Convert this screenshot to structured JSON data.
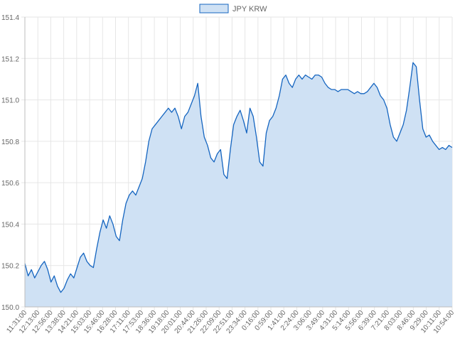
{
  "chart_data": {
    "type": "area",
    "title": "",
    "legend": {
      "position": "top",
      "entries": [
        "JPY KRW"
      ]
    },
    "xlabel": "",
    "ylabel": "",
    "ylim": [
      150.0,
      151.4
    ],
    "y_ticks": [
      "150.0",
      "150.2",
      "150.4",
      "150.6",
      "150.8",
      "151.0",
      "151.2",
      "151.4"
    ],
    "grid": true,
    "colors": {
      "line": "#1565c0",
      "fill": "#cfe1f4",
      "grid": "#e6e6e6",
      "text": "#666666"
    },
    "x_ticks": [
      "11:31:00",
      "12:13:00",
      "12:56:00",
      "13:38:00",
      "14:21:00",
      "15:03:00",
      "15:46:00",
      "16:28:00",
      "17:11:00",
      "17:53:00",
      "18:36:00",
      "19:18:00",
      "20:01:00",
      "20:44:00",
      "21:26:00",
      "22:09:00",
      "22:51:00",
      "23:34:00",
      "0:16:00",
      "0:59:00",
      "1:41:00",
      "2:24:00",
      "3:06:00",
      "3:49:00",
      "4:31:00",
      "5:14:00",
      "5:56:00",
      "6:39:00",
      "7:21:00",
      "8:03:00",
      "8:46:00",
      "9:29:00",
      "10:11:00",
      "10:54:00"
    ],
    "series": [
      {
        "name": "JPY KRW",
        "values": [
          150.21,
          150.15,
          150.18,
          150.14,
          150.17,
          150.2,
          150.22,
          150.18,
          150.12,
          150.15,
          150.1,
          150.07,
          150.09,
          150.13,
          150.16,
          150.14,
          150.19,
          150.24,
          150.26,
          150.22,
          150.2,
          150.19,
          150.28,
          150.36,
          150.42,
          150.38,
          150.44,
          150.4,
          150.34,
          150.32,
          150.42,
          150.5,
          150.54,
          150.56,
          150.54,
          150.58,
          150.62,
          150.7,
          150.8,
          150.86,
          150.88,
          150.9,
          150.92,
          150.94,
          150.96,
          150.94,
          150.96,
          150.92,
          150.86,
          150.92,
          150.94,
          150.98,
          151.02,
          151.08,
          150.92,
          150.82,
          150.78,
          150.72,
          150.7,
          150.74,
          150.76,
          150.64,
          150.62,
          150.76,
          150.88,
          150.92,
          150.95,
          150.9,
          150.84,
          150.96,
          150.92,
          150.82,
          150.7,
          150.68,
          150.84,
          150.9,
          150.92,
          150.96,
          151.02,
          151.1,
          151.12,
          151.08,
          151.06,
          151.1,
          151.12,
          151.1,
          151.12,
          151.11,
          151.1,
          151.12,
          151.12,
          151.11,
          151.08,
          151.06,
          151.05,
          151.05,
          151.04,
          151.05,
          151.05,
          151.05,
          151.04,
          151.03,
          151.04,
          151.03,
          151.03,
          151.04,
          151.06,
          151.08,
          151.06,
          151.02,
          151.0,
          150.96,
          150.88,
          150.82,
          150.8,
          150.84,
          150.88,
          150.95,
          151.06,
          151.18,
          151.16,
          151.0,
          150.86,
          150.82,
          150.83,
          150.8,
          150.78,
          150.76,
          150.77,
          150.76,
          150.78,
          150.77
        ]
      }
    ]
  }
}
